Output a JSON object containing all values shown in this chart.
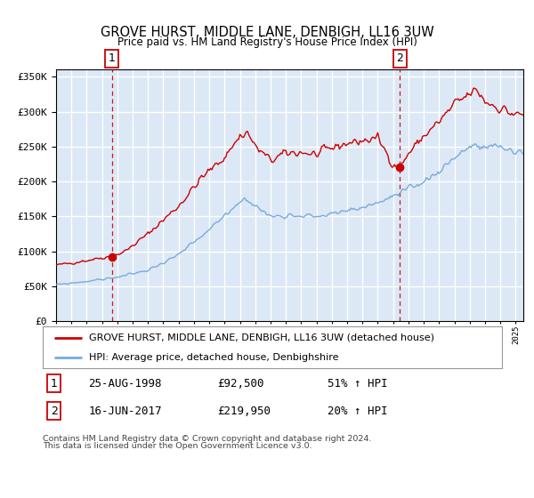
{
  "title": "GROVE HURST, MIDDLE LANE, DENBIGH, LL16 3UW",
  "subtitle": "Price paid vs. HM Land Registry's House Price Index (HPI)",
  "legend_line1": "GROVE HURST, MIDDLE LANE, DENBIGH, LL16 3UW (detached house)",
  "legend_line2": "HPI: Average price, detached house, Denbighshire",
  "sale1_date": "25-AUG-1998",
  "sale1_price": "£92,500",
  "sale1_hpi": "51% ↑ HPI",
  "sale2_date": "16-JUN-2017",
  "sale2_price": "£219,950",
  "sale2_hpi": "20% ↑ HPI",
  "footnote1": "Contains HM Land Registry data © Crown copyright and database right 2024.",
  "footnote2": "This data is licensed under the Open Government Licence v3.0.",
  "sale1_x": 1998.65,
  "sale1_y": 92500,
  "sale2_x": 2017.45,
  "sale2_y": 219950,
  "red_color": "#cc0000",
  "blue_color": "#7aaadd",
  "background_color": "#dce8f5",
  "grid_color": "#ffffff",
  "ylim": [
    0,
    360000
  ],
  "xlim": [
    1995.0,
    2025.5
  ],
  "red_keys_years": [
    1995,
    1997,
    1998.0,
    1998.65,
    1999.5,
    2001,
    2003,
    2004.5,
    2006,
    2007.0,
    2007.5,
    2008,
    2009,
    2010,
    2011,
    2012,
    2013,
    2014,
    2015,
    2016,
    2017.0,
    2017.45,
    2018,
    2019,
    2020,
    2021,
    2022,
    2022.5,
    2023,
    2024,
    2025
  ],
  "red_keys_vals": [
    80000,
    87000,
    91000,
    92500,
    100000,
    125000,
    165000,
    205000,
    235000,
    265000,
    270000,
    250000,
    230000,
    240000,
    242000,
    238000,
    248000,
    255000,
    258000,
    262000,
    225000,
    219950,
    240000,
    265000,
    285000,
    310000,
    325000,
    330000,
    315000,
    305000,
    295000
  ],
  "blue_keys_years": [
    1995,
    1997,
    1999,
    2001,
    2003,
    2005,
    2007.0,
    2007.5,
    2008,
    2009,
    2010,
    2011,
    2012,
    2013,
    2014,
    2015,
    2016,
    2017,
    2018,
    2019,
    2020,
    2021,
    2022,
    2023,
    2024,
    2025
  ],
  "blue_keys_vals": [
    52000,
    57000,
    63000,
    73000,
    95000,
    130000,
    172000,
    175000,
    165000,
    150000,
    152000,
    152000,
    150000,
    153000,
    158000,
    163000,
    170000,
    178000,
    188000,
    200000,
    215000,
    235000,
    250000,
    248000,
    250000,
    242000
  ]
}
